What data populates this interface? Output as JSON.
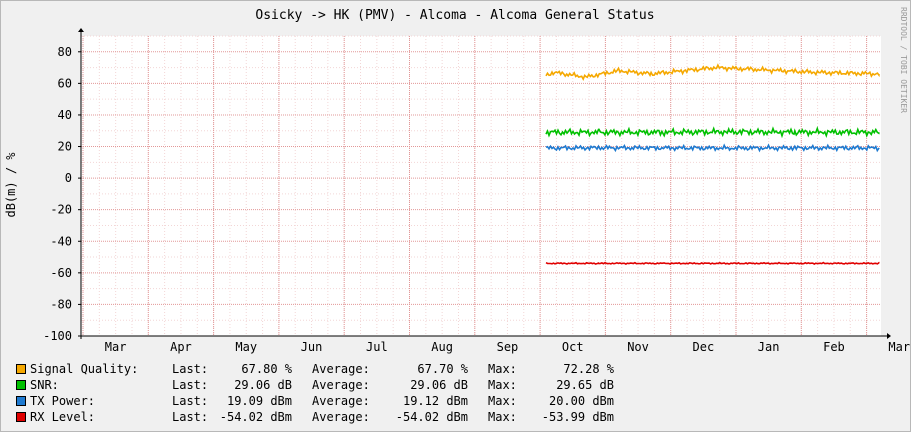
{
  "chart_data": {
    "type": "line",
    "title": "Osicky -> HK (PMV) - Alcoma - Alcoma General Status",
    "ylabel": "dB(m) / %",
    "watermark": "RRDTOOL / TOBI OETIKER",
    "ylim": [
      -100,
      90
    ],
    "yticks": [
      -100,
      -80,
      -60,
      -40,
      -20,
      0,
      20,
      40,
      60,
      80
    ],
    "xticks": [
      "Mar",
      "Apr",
      "May",
      "Jun",
      "Jul",
      "Aug",
      "Sep",
      "Oct",
      "Nov",
      "Dec",
      "Jan",
      "Feb",
      "Mar"
    ],
    "grid": true,
    "legend_placement": "bottom",
    "series": [
      {
        "name": "Signal Quality:",
        "color": "#f5a800",
        "x": [
          "Oct",
          "Oct",
          "Nov",
          "Nov",
          "Dec",
          "Dec",
          "Jan",
          "Jan",
          "Feb",
          "Feb",
          "Mar"
        ],
        "values": [
          65,
          67,
          64,
          68,
          66,
          68,
          70,
          69,
          68,
          67,
          66
        ],
        "last": "67.80 %",
        "average": "67.70 %",
        "max": "72.28 %"
      },
      {
        "name": "SNR:",
        "color": "#00c000",
        "x": [
          "Oct",
          "Nov",
          "Dec",
          "Jan",
          "Feb",
          "Mar"
        ],
        "values": [
          29,
          29,
          29,
          29.3,
          29.1,
          29
        ],
        "last": "29.06 dB",
        "average": "29.06 dB",
        "max": "29.65 dB"
      },
      {
        "name": "TX Power:",
        "color": "#1e7ad0",
        "x": [
          "Oct",
          "Nov",
          "Dec",
          "Jan",
          "Feb",
          "Mar"
        ],
        "values": [
          19,
          19.2,
          19.1,
          19,
          19.1,
          19.1
        ],
        "last": "19.09 dBm",
        "average": "19.12 dBm",
        "max": "20.00 dBm"
      },
      {
        "name": "RX Level:",
        "color": "#e00000",
        "x": [
          "Oct",
          "Nov",
          "Dec",
          "Jan",
          "Feb",
          "Mar"
        ],
        "values": [
          -54,
          -54,
          -54,
          -54,
          -54,
          -54
        ],
        "last": "-54.02 dBm",
        "average": "-54.02 dBm",
        "max": "-53.99 dBm"
      }
    ]
  },
  "legend_labels": {
    "last": "Last:",
    "average": "Average:",
    "max": "Max:"
  }
}
